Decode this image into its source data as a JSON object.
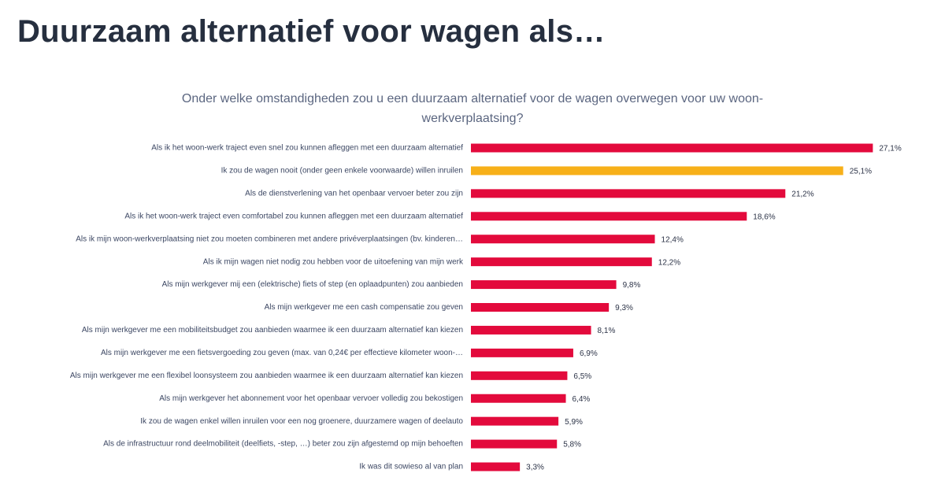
{
  "chart_data": {
    "type": "hbar",
    "title": "Duurzaam alternatief voor wagen als…",
    "subtitle": "Onder welke omstandigheden zou u een duurzaam alternatief voor de wagen overwegen voor uw woon-werkverplaatsing?",
    "categories": [
      "Als ik het woon-werk traject even snel zou kunnen afleggen met een duurzaam alternatief",
      "Ik zou de wagen nooit (onder geen enkele voorwaarde) willen inruilen",
      "Als de dienstverlening van het openbaar vervoer beter zou zijn",
      "Als ik het woon-werk traject even comfortabel zou kunnen afleggen met een duurzaam alternatief",
      "Als ik mijn woon-werkverplaatsing niet zou moeten combineren met andere privéverplaatsingen (bv. kinderen…",
      "Als ik mijn wagen niet nodig zou hebben voor de uitoefening van mijn werk",
      "Als mijn werkgever mij een (elektrische) fiets of step (en oplaadpunten) zou aanbieden",
      "Als mijn werkgever me een cash compensatie zou geven",
      "Als mijn werkgever me een mobiliteitsbudget zou aanbieden waarmee ik een duurzaam alternatief kan kiezen",
      "Als mijn werkgever me een fietsvergoeding zou geven (max. van 0,24€ per effectieve kilometer woon-…",
      "Als mijn werkgever me een flexibel loonsysteem zou aanbieden waarmee ik een duurzaam alternatief kan kiezen",
      "Als mijn werkgever het abonnement voor het openbaar vervoer volledig zou bekostigen",
      "Ik zou de wagen enkel willen inruilen voor een nog groenere, duurzamere wagen of deelauto",
      "Als de infrastructuur rond deelmobiliteit (deelfiets, -step, …) beter zou zijn afgestemd op mijn behoeften",
      "Ik was dit sowieso al van plan"
    ],
    "values": [
      27.1,
      25.1,
      21.2,
      18.6,
      12.4,
      12.2,
      9.8,
      9.3,
      8.1,
      6.9,
      6.5,
      6.4,
      5.9,
      5.8,
      3.3
    ],
    "value_labels": [
      "27,1%",
      "25,1%",
      "21,2%",
      "18,6%",
      "12,4%",
      "12,2%",
      "9,8%",
      "9,3%",
      "8,1%",
      "6,9%",
      "6,5%",
      "6,4%",
      "5,9%",
      "5,8%",
      "3,3%"
    ],
    "colors": [
      "#e30a3c",
      "#f7b019",
      "#e30a3c",
      "#e30a3c",
      "#e30a3c",
      "#e30a3c",
      "#e30a3c",
      "#e30a3c",
      "#e30a3c",
      "#e30a3c",
      "#e30a3c",
      "#e30a3c",
      "#e30a3c",
      "#e30a3c",
      "#e30a3c"
    ],
    "xlim": [
      0,
      30
    ]
  }
}
